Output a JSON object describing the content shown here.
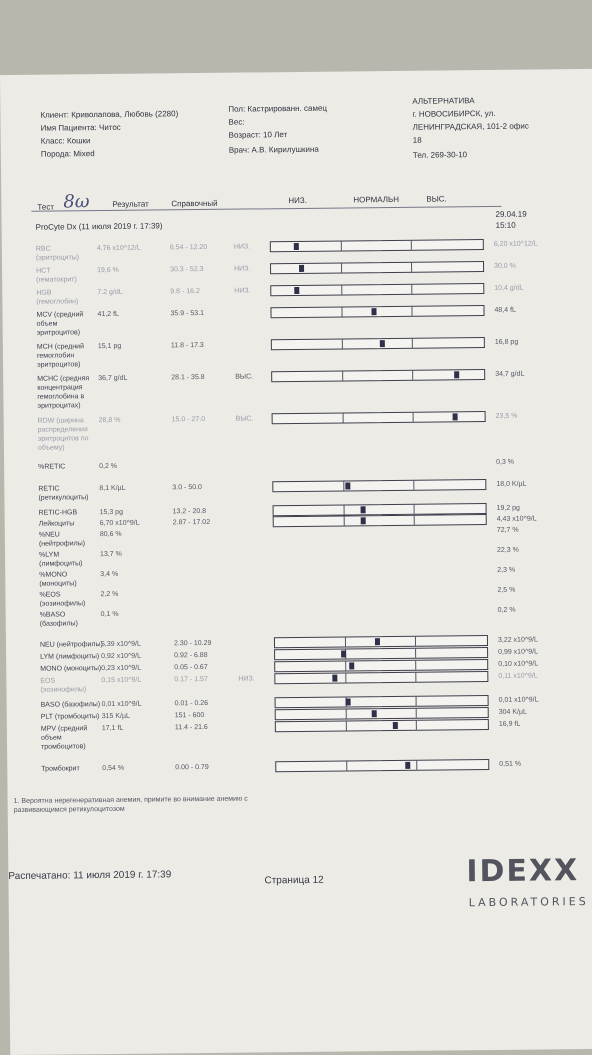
{
  "header": {
    "client": "Клиент: Криволапова, Любовь (2280)",
    "patient": "Имя Пациента: Читос",
    "class": "Класс: Кошки",
    "breed": "Порода: Mixed",
    "sex": "Пол: Кастрированн. самец",
    "weight": "Вес:",
    "age": "Возраст: 10 Лет",
    "doctor": "Врач: А.В. Кирилушкина",
    "clinic_name": "АЛЬТЕРНАТИВА",
    "clinic_addr1": "г. НОВОСИБИРСК, ул.",
    "clinic_addr2": "ЛЕНИНГРАДСКАЯ, 101-2 офис",
    "clinic_addr3": "18",
    "phone": "Тел. 269-30-10"
  },
  "columns": {
    "test": "Тест",
    "handwritten": "8ω",
    "result": "Результат",
    "reference": "Справочный",
    "low": "НИЗ.",
    "normal": "НОРМАЛЬН",
    "high": "ВЫС."
  },
  "analyzer": "ProCyte Dx (11 июля 2019 г. 17:39)",
  "prev_date": "29.04.19",
  "prev_time": "15:10",
  "rows": [
    {
      "label": "RBC\n(эритроциты)",
      "result": "4,76 x10^12/L",
      "ref": "6.54 - 12.20",
      "flag": "НИЗ.",
      "prev": "6,20 x10^12/L",
      "marker": 0.12,
      "faint": true
    },
    {
      "label": "HCT\n(гематокрит)",
      "result": "19,6 %",
      "ref": "30.3 - 52.3",
      "flag": "НИЗ.",
      "prev": "30,0 %",
      "marker": 0.14,
      "faint": true
    },
    {
      "label": "HGB\n(гемоглобин)",
      "result": "7.2 g/dL",
      "ref": "9.8 - 16.2",
      "flag": "НИЗ.",
      "prev": "10,4 g/dL",
      "marker": 0.12,
      "faint": true
    },
    {
      "label": "MCV (средний\nобъем\nэритроцитов)",
      "result": "41,2 fL",
      "ref": "35.9 - 53.1",
      "flag": "",
      "prev": "48,4 fL",
      "marker": 0.48
    },
    {
      "label": "MCH (средний\nгемоглобин\nэритроцитов)",
      "result": "15,1 pg",
      "ref": "11.8 - 17.3",
      "flag": "",
      "prev": "16,8 pg",
      "marker": 0.52
    },
    {
      "label": "MCHC (средняя\nконцентрация\nгемоглобина в\nэритроцитах)",
      "result": "36,7 g/dL",
      "ref": "28.1 - 35.8",
      "flag": "ВЫС.",
      "prev": "34,7 g/dL",
      "marker": 0.87
    },
    {
      "label": "RDW (ширина\nраспределения\nэритроцитов по\nобъему)",
      "result": "28,8 %",
      "ref": "15.0 - 27.0",
      "flag": "ВЫС.",
      "prev": "23,5 %",
      "marker": 0.86,
      "faint": true
    },
    {
      "label": "%RETIC",
      "result": "0,2 %",
      "ref": "",
      "flag": "",
      "prev": "0,3 %"
    },
    {
      "label": "RETIC\n(ретикулоциты)",
      "result": "8,1 K/µL",
      "ref": "3.0 - 50.0",
      "flag": "",
      "prev": "18,0 K/µL",
      "marker": 0.35
    },
    {
      "label": "RETIC-HGB",
      "result": "15,3 pg",
      "ref": "13.2 - 20.8",
      "flag": "",
      "prev": "19,2 pg",
      "marker": 0.42
    },
    {
      "label": "Лейкоциты",
      "result": "6,70 x10^9/L",
      "ref": "2.87 - 17.02",
      "flag": "",
      "prev": "4,43 x10^9/L",
      "marker": 0.42
    },
    {
      "label": "%NEU\n(нейтрофилы)",
      "result": "80,6 %",
      "ref": "",
      "flag": "",
      "prev": "72,7 %"
    },
    {
      "label": "%LYM\n(лимфоциты)",
      "result": "13,7 %",
      "ref": "",
      "flag": "",
      "prev": "22,3 %"
    },
    {
      "label": "%MONO\n(моноциты)",
      "result": "3,4 %",
      "ref": "",
      "flag": "",
      "prev": "2,3 %"
    },
    {
      "label": "%EOS\n(эозинофилы)",
      "result": "2,2 %",
      "ref": "",
      "flag": "",
      "prev": "2,5 %"
    },
    {
      "label": "%BASO\n(базофилы)",
      "result": "0,1 %",
      "ref": "",
      "flag": "",
      "prev": "0,2 %"
    },
    {
      "label": "NEU (нейтрофилы)",
      "result": "5,39 x10^9/L",
      "ref": "2.30 - 10.29",
      "flag": "",
      "prev": "3,22 x10^9/L",
      "marker": 0.48
    },
    {
      "label": "LYM (лимфоциты)",
      "result": "0,92 x10^9/L",
      "ref": "0.92 - 6.88",
      "flag": "",
      "prev": "0,99 x10^9/L",
      "marker": 0.32
    },
    {
      "label": "MONO (моноциты)",
      "result": "0,23 x10^9/L",
      "ref": "0.05 - 0.67",
      "flag": "",
      "prev": "0,10 x10^9/L",
      "marker": 0.36
    },
    {
      "label": "EOS\n(эозинофилы)",
      "result": "0,15 x10^9/L",
      "ref": "0.17 - 1.57",
      "flag": "НИЗ.",
      "prev": "0,11 x10^9/L",
      "marker": 0.28,
      "faint": true
    },
    {
      "label": "BASO (базофилы)",
      "result": "0,01 x10^9/L",
      "ref": "0.01 - 0.26",
      "flag": "",
      "prev": "0,01 x10^9/L",
      "marker": 0.34
    },
    {
      "label": "PLT (тромбоциты)",
      "result": "315 K/µL",
      "ref": "151 - 600",
      "flag": "",
      "prev": "304 K/µL",
      "marker": 0.46
    },
    {
      "label": "MPV (средний\nобъем\nтромбоцитов)",
      "result": "17,1 fL",
      "ref": "11.4 - 21.6",
      "flag": "",
      "prev": "16,9 fL",
      "marker": 0.56
    },
    {
      "label": "Тромбокрит",
      "result": "0,54 %",
      "ref": "0.00 - 0.79",
      "flag": "",
      "prev": "0,51 %",
      "marker": 0.62
    }
  ],
  "note": "1. Вероятна нерегенеративная анемия, примите во внимание анемию с\nразвивающимся ретикулоцитозом",
  "footer": {
    "printed": "Распечатано: 11 июля 2019 г. 17:39",
    "page": "Страница 12",
    "logo_top": "IDEXX",
    "logo_bottom": "LABORATORIES"
  }
}
